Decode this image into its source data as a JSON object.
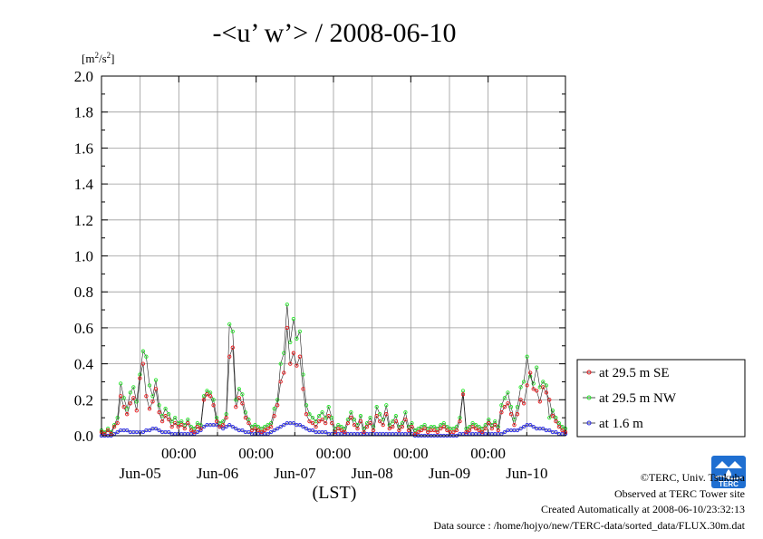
{
  "chart_data": {
    "type": "line",
    "title": "-<u’ w’> / 2008-06-10",
    "ylabel": "[m2/s2]",
    "ylabel_parts": {
      "prefix": "[m",
      "sup1": "2",
      "mid": "/s",
      "sup2": "2",
      "suffix": "]"
    },
    "xlabel": "(LST)",
    "ylim": [
      0,
      2.0
    ],
    "yticks": [
      "0.0",
      "0.2",
      "0.4",
      "0.6",
      "0.8",
      "1.0",
      "1.2",
      "1.4",
      "1.6",
      "1.8",
      "2.0"
    ],
    "xlim": [
      0,
      144
    ],
    "xticks_time": [
      "00:00",
      "00:00",
      "00:00",
      "00:00",
      "00:00"
    ],
    "xticks_time_hours": [
      24,
      48,
      72,
      96,
      120
    ],
    "xticks_date": [
      "Jun-05",
      "Jun-06",
      "Jun-07",
      "Jun-08",
      "Jun-09",
      "Jun-10"
    ],
    "xticks_date_hours": [
      12,
      36,
      60,
      84,
      108,
      132
    ],
    "grid": true,
    "legend_position": "right",
    "series": [
      {
        "name": "at 29.5 m SE",
        "color": "#e8181c",
        "marker": "circle",
        "values": [
          0.02,
          0.01,
          0.03,
          0.01,
          0.05,
          0.07,
          0.22,
          0.16,
          0.12,
          0.18,
          0.21,
          0.14,
          0.32,
          0.4,
          0.22,
          0.15,
          0.19,
          0.26,
          0.13,
          0.08,
          0.11,
          0.09,
          0.05,
          0.07,
          0.05,
          0.06,
          0.04,
          0.07,
          0.03,
          0.02,
          0.05,
          0.04,
          0.2,
          0.23,
          0.22,
          0.17,
          0.08,
          0.05,
          0.06,
          0.1,
          0.44,
          0.49,
          0.16,
          0.21,
          0.18,
          0.1,
          0.07,
          0.03,
          0.04,
          0.03,
          0.02,
          0.03,
          0.04,
          0.05,
          0.11,
          0.17,
          0.3,
          0.35,
          0.6,
          0.4,
          0.46,
          0.39,
          0.44,
          0.26,
          0.12,
          0.08,
          0.07,
          0.05,
          0.08,
          0.09,
          0.07,
          0.11,
          0.07,
          0.02,
          0.04,
          0.03,
          0.02,
          0.07,
          0.1,
          0.06,
          0.04,
          0.08,
          0.02,
          0.05,
          0.07,
          0.03,
          0.11,
          0.08,
          0.06,
          0.12,
          0.04,
          0.05,
          0.08,
          0.03,
          0.05,
          0.09,
          0.03,
          0.05,
          0.01,
          0.02,
          0.03,
          0.04,
          0.02,
          0.03,
          0.03,
          0.02,
          0.04,
          0.05,
          0.03,
          0.02,
          0.02,
          0.03,
          0.08,
          0.23,
          0.02,
          0.03,
          0.05,
          0.04,
          0.03,
          0.02,
          0.04,
          0.07,
          0.04,
          0.06,
          0.03,
          0.13,
          0.16,
          0.18,
          0.12,
          0.06,
          0.12,
          0.2,
          0.18,
          0.28,
          0.35,
          0.26,
          0.25,
          0.19,
          0.27,
          0.24,
          0.2,
          0.11,
          0.08,
          0.05,
          0.03,
          0.02
        ]
      },
      {
        "name": "at 29.5 m NW",
        "color": "#27e62b",
        "marker": "circle",
        "values": [
          0.03,
          0.02,
          0.04,
          0.02,
          0.06,
          0.1,
          0.29,
          0.21,
          0.15,
          0.24,
          0.27,
          0.19,
          0.34,
          0.47,
          0.44,
          0.28,
          0.22,
          0.31,
          0.17,
          0.11,
          0.15,
          0.12,
          0.08,
          0.1,
          0.07,
          0.08,
          0.06,
          0.09,
          0.05,
          0.04,
          0.07,
          0.06,
          0.22,
          0.25,
          0.24,
          0.2,
          0.1,
          0.07,
          0.08,
          0.12,
          0.62,
          0.58,
          0.2,
          0.26,
          0.23,
          0.13,
          0.09,
          0.05,
          0.06,
          0.05,
          0.04,
          0.05,
          0.06,
          0.07,
          0.15,
          0.2,
          0.4,
          0.46,
          0.73,
          0.52,
          0.65,
          0.54,
          0.58,
          0.34,
          0.17,
          0.12,
          0.1,
          0.08,
          0.11,
          0.13,
          0.1,
          0.16,
          0.1,
          0.04,
          0.06,
          0.05,
          0.04,
          0.09,
          0.13,
          0.09,
          0.06,
          0.11,
          0.04,
          0.07,
          0.1,
          0.05,
          0.16,
          0.12,
          0.09,
          0.17,
          0.06,
          0.08,
          0.11,
          0.05,
          0.07,
          0.13,
          0.05,
          0.07,
          0.03,
          0.04,
          0.05,
          0.06,
          0.04,
          0.05,
          0.05,
          0.04,
          0.06,
          0.07,
          0.05,
          0.04,
          0.04,
          0.05,
          0.1,
          0.25,
          0.04,
          0.05,
          0.07,
          0.06,
          0.05,
          0.04,
          0.06,
          0.09,
          0.06,
          0.08,
          0.05,
          0.17,
          0.21,
          0.24,
          0.16,
          0.09,
          0.16,
          0.27,
          0.3,
          0.44,
          0.33,
          0.29,
          0.38,
          0.27,
          0.3,
          0.28,
          0.1,
          0.14,
          0.1,
          0.07,
          0.05,
          0.04
        ]
      },
      {
        "name": "at 1.6 m",
        "color": "#2a2ae8",
        "marker": "circle",
        "values": [
          0.0,
          0.0,
          0.0,
          0.0,
          0.01,
          0.02,
          0.03,
          0.03,
          0.03,
          0.02,
          0.02,
          0.02,
          0.02,
          0.02,
          0.03,
          0.03,
          0.04,
          0.04,
          0.03,
          0.02,
          0.02,
          0.02,
          0.01,
          0.01,
          0.01,
          0.01,
          0.01,
          0.01,
          0.01,
          0.01,
          0.02,
          0.03,
          0.05,
          0.06,
          0.06,
          0.06,
          0.06,
          0.05,
          0.04,
          0.05,
          0.06,
          0.05,
          0.04,
          0.03,
          0.03,
          0.02,
          0.02,
          0.01,
          0.01,
          0.01,
          0.01,
          0.01,
          0.01,
          0.02,
          0.03,
          0.04,
          0.05,
          0.06,
          0.07,
          0.07,
          0.07,
          0.06,
          0.06,
          0.05,
          0.04,
          0.03,
          0.03,
          0.02,
          0.02,
          0.02,
          0.02,
          0.01,
          0.01,
          0.01,
          0.01,
          0.01,
          0.01,
          0.01,
          0.01,
          0.01,
          0.01,
          0.01,
          0.01,
          0.01,
          0.01,
          0.01,
          0.01,
          0.01,
          0.01,
          0.01,
          0.01,
          0.01,
          0.01,
          0.01,
          0.01,
          0.01,
          0.01,
          0.01,
          0.0,
          0.0,
          0.0,
          0.0,
          0.0,
          0.0,
          0.0,
          0.0,
          0.0,
          0.0,
          0.0,
          0.0,
          0.0,
          0.0,
          0.01,
          0.01,
          0.01,
          0.01,
          0.01,
          0.01,
          0.01,
          0.01,
          0.01,
          0.01,
          0.01,
          0.01,
          0.01,
          0.01,
          0.02,
          0.03,
          0.03,
          0.03,
          0.03,
          0.04,
          0.05,
          0.06,
          0.06,
          0.05,
          0.04,
          0.04,
          0.04,
          0.03,
          0.03,
          0.02,
          0.02,
          0.01,
          0.01,
          0.01
        ]
      }
    ]
  },
  "credits": {
    "copyright": "©TERC, Univ. Tsukuba",
    "observed": "Observed at TERC Tower site",
    "created": "Created Automatically at 2008-06-10/23:32:13",
    "source": "Data source : /home/hojyo/new/TERC-data/sorted_data/FLUX.30m.dat"
  },
  "logo": {
    "text": "TERC",
    "color": "#1f6fd1"
  }
}
